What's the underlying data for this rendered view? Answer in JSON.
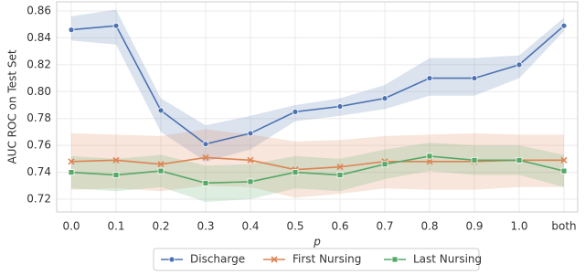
{
  "chart_data": {
    "type": "line",
    "y_label": "AUC ROC on Test Set",
    "x_label": "p",
    "categories": [
      "0.0",
      "0.1",
      "0.2",
      "0.3",
      "0.4",
      "0.5",
      "0.6",
      "0.7",
      "0.8",
      "0.9",
      "1.0",
      "both"
    ],
    "ylim": [
      0.7105,
      0.8668
    ],
    "yticks": [
      0.72,
      0.74,
      0.76,
      0.78,
      {
        "value": 0.8,
        "label": "0.80"
      },
      0.82,
      0.84,
      0.86
    ],
    "grid": true,
    "legend": "bottom",
    "series": [
      {
        "name": "Discharge",
        "color": "#4c72b0",
        "marker": "o",
        "values": [
          0.846,
          0.849,
          0.786,
          0.761,
          0.769,
          0.785,
          0.789,
          0.795,
          0.81,
          0.81,
          0.82,
          0.849
        ],
        "upper": [
          0.856,
          0.861,
          0.795,
          0.775,
          0.782,
          0.79,
          0.795,
          0.805,
          0.825,
          0.825,
          0.827,
          0.855
        ],
        "lower": [
          0.838,
          0.835,
          0.77,
          0.748,
          0.757,
          0.778,
          0.782,
          0.787,
          0.797,
          0.797,
          0.81,
          0.845
        ]
      },
      {
        "name": "First Nursing",
        "color": "#dd8452",
        "marker": "x",
        "values": [
          0.748,
          0.749,
          0.746,
          0.751,
          0.749,
          0.742,
          0.744,
          0.748,
          0.748,
          0.748,
          0.749,
          0.749
        ],
        "upper": [
          0.769,
          0.768,
          0.767,
          0.772,
          0.768,
          0.763,
          0.764,
          0.767,
          0.768,
          0.769,
          0.768,
          0.768
        ],
        "lower": [
          0.727,
          0.728,
          0.726,
          0.73,
          0.729,
          0.721,
          0.724,
          0.728,
          0.727,
          0.727,
          0.729,
          0.729
        ]
      },
      {
        "name": "Last Nursing",
        "color": "#55a868",
        "marker": "s",
        "values": [
          0.74,
          0.738,
          0.741,
          0.732,
          0.733,
          0.74,
          0.738,
          0.746,
          0.752,
          0.749,
          0.749,
          0.741
        ],
        "upper": [
          0.752,
          0.75,
          0.753,
          0.745,
          0.746,
          0.752,
          0.75,
          0.757,
          0.762,
          0.76,
          0.76,
          0.753
        ],
        "lower": [
          0.728,
          0.726,
          0.729,
          0.718,
          0.72,
          0.728,
          0.726,
          0.735,
          0.741,
          0.738,
          0.738,
          0.729
        ]
      }
    ]
  }
}
